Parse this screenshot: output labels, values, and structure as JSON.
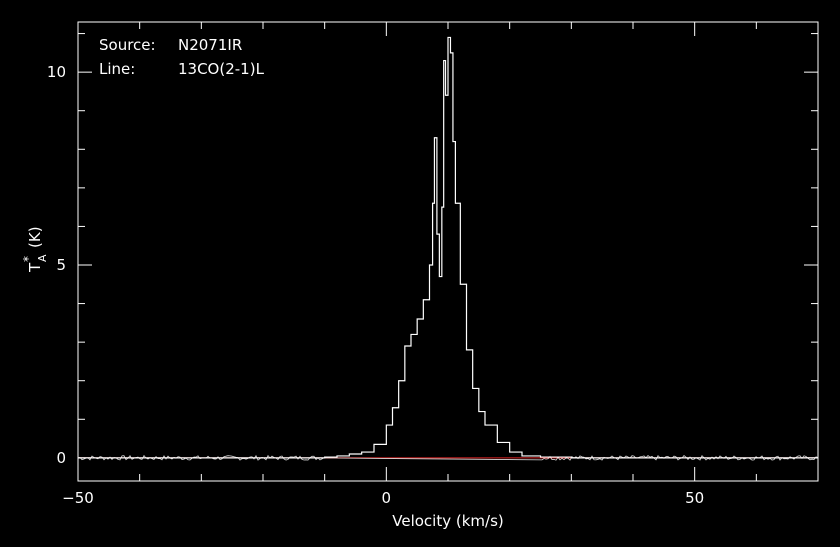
{
  "chart_data": {
    "type": "line",
    "legend_text": {
      "source_label": "Source:",
      "source_value": "N2071IR",
      "line_label": "Line:",
      "line_value": "13CO(2-1)L"
    },
    "xlabel": "Velocity (km/s)",
    "ylabel_main": "T",
    "ylabel_sup": "*",
    "ylabel_sub": "A",
    "ylabel_unit": "(K)",
    "xlim": [
      -50,
      70
    ],
    "ylim": [
      -0.6,
      11.3
    ],
    "x_ticks": [
      -50,
      0,
      50
    ],
    "x_tick_labels": [
      "−50",
      "0",
      "50"
    ],
    "y_ticks": [
      0,
      5,
      10
    ],
    "y_tick_labels": [
      "0",
      "5",
      "10"
    ],
    "baseline": 0,
    "colors": {
      "background": "#000000",
      "spectrum": "#ffffff",
      "baseline": "#dd2222",
      "axes": "#ffffff"
    },
    "series": [
      {
        "x": [
          -50,
          -40,
          -30,
          -20,
          -15,
          -10,
          -8,
          -6,
          -4,
          -2,
          0,
          1,
          2,
          3,
          4,
          5,
          6,
          7,
          7.5,
          7.8,
          8.2,
          8.6,
          9,
          9.3,
          9.6,
          10,
          10.4,
          10.8,
          11.2,
          12,
          13,
          14,
          15,
          16,
          18,
          20,
          22,
          25,
          30,
          40,
          50,
          60,
          70
        ],
        "y": [
          0,
          0,
          0,
          0,
          0,
          0.02,
          0.05,
          0.1,
          0.15,
          0.35,
          0.85,
          1.3,
          2.0,
          2.9,
          3.2,
          3.6,
          4.1,
          5.0,
          6.6,
          8.3,
          5.8,
          4.7,
          6.5,
          10.3,
          9.4,
          10.9,
          10.5,
          8.2,
          6.6,
          4.5,
          2.8,
          1.8,
          1.2,
          0.85,
          0.4,
          0.15,
          0.05,
          0.02,
          0,
          0,
          0,
          0,
          0
        ]
      }
    ]
  }
}
